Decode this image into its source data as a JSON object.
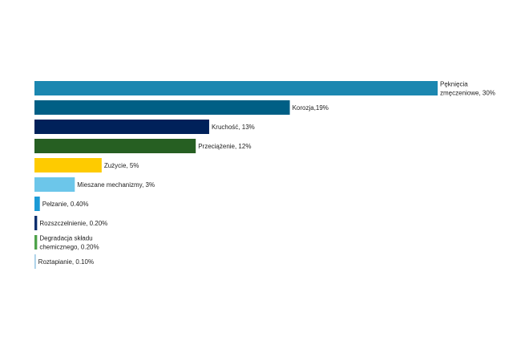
{
  "chart_data": {
    "type": "bar",
    "orientation": "horizontal",
    "title": "",
    "xlabel": "",
    "ylabel": "",
    "xlim": [
      0,
      30
    ],
    "grid": false,
    "bars": [
      {
        "label": [
          "Pęknięcia",
          "zmęczeniowe, 30%"
        ],
        "value": 30,
        "color": "#1b87b0"
      },
      {
        "label": [
          "Korozja,19%"
        ],
        "value": 19,
        "color": "#005f85"
      },
      {
        "label": [
          "Kruchość, 13%"
        ],
        "value": 13,
        "color": "#00215a"
      },
      {
        "label": [
          "Przeciążenie, 12%"
        ],
        "value": 12,
        "color": "#265f22"
      },
      {
        "label": [
          "Zużycie, 5%"
        ],
        "value": 5,
        "color": "#fecb00"
      },
      {
        "label": [
          "Mieszane mechanizmy, 3%"
        ],
        "value": 3,
        "color": "#6cc6ea"
      },
      {
        "label": [
          "Pełzanie, 0.40%"
        ],
        "value": 0.4,
        "color": "#1b9ad6"
      },
      {
        "label": [
          "Rozszczelnienie, 0.20%"
        ],
        "value": 0.2,
        "color": "#0b2f6e"
      },
      {
        "label": [
          "Degradacja składu",
          "chemicznego, 0.20%"
        ],
        "value": 0.2,
        "color": "#4ea24a"
      },
      {
        "label": [
          "Roztapianie, 0.10%"
        ],
        "value": 0.1,
        "color": "#9fcbe6"
      }
    ]
  }
}
